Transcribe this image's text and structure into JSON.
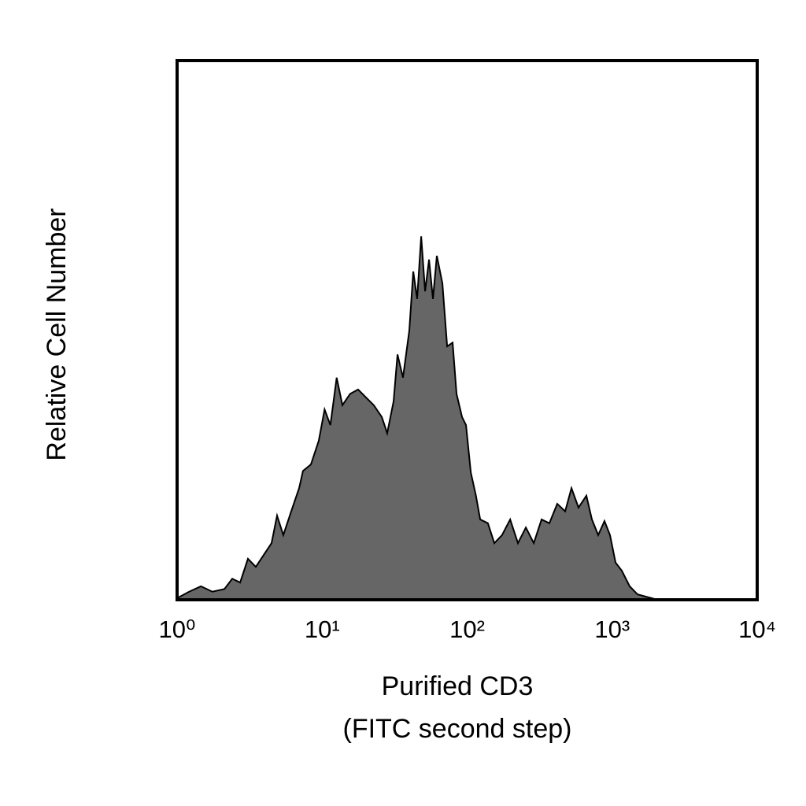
{
  "chart_data": {
    "type": "area",
    "xlabel": [
      "Purified CD3",
      "(FITC second step)"
    ],
    "ylabel": "Relative Cell Number",
    "xscale": "log",
    "xlim": [
      1,
      10000
    ],
    "xticks": [
      {
        "value": 1,
        "label": "10⁰"
      },
      {
        "value": 10,
        "label": "10¹"
      },
      {
        "value": 100,
        "label": "10²"
      },
      {
        "value": 1000,
        "label": "10³"
      },
      {
        "value": 10000,
        "label": "10⁴"
      }
    ],
    "ylim": [
      0,
      100
    ],
    "color": "#666666",
    "x": [
      1,
      1.21,
      1.46,
      1.75,
      2.12,
      2.4,
      2.72,
      3.08,
      3.49,
      3.95,
      4.48,
      4.89,
      5.4,
      6.12,
      6.94,
      7.38,
      8.37,
      9.48,
      10.4,
      11.4,
      12.6,
      13.8,
      15.6,
      17.7,
      20.1,
      22.7,
      25.8,
      28.1,
      31.1,
      33.1,
      36.1,
      39.9,
      42.5,
      45.2,
      48.2,
      51.3,
      54.6,
      58.1,
      61.8,
      67.5,
      72.8,
      79.4,
      84.5,
      92.2,
      98.2,
      106,
      115,
      123,
      139,
      154,
      174,
      198,
      224,
      254,
      288,
      326,
      369,
      418,
      474,
      524,
      586,
      664,
      725,
      801,
      885,
      966,
      1055,
      1165,
      1320,
      1496,
      1695,
      1874,
      2046
    ],
    "values": [
      0.3,
      1.5,
      2.5,
      1.5,
      2,
      3.9,
      3.2,
      7.6,
      6.1,
      8.3,
      10.5,
      15.6,
      12,
      16.4,
      20.7,
      23.9,
      25.1,
      29.5,
      35.3,
      32.4,
      41.2,
      36.1,
      38.2,
      39,
      37.5,
      36.1,
      33.9,
      30.9,
      36.8,
      45.5,
      41.2,
      49.9,
      60.9,
      55.8,
      67.4,
      57.2,
      63.1,
      55.8,
      63.8,
      58.7,
      47,
      47.7,
      38.2,
      33.9,
      32.4,
      23.6,
      19.3,
      14.9,
      14.2,
      10.5,
      12,
      14.9,
      10.5,
      13.4,
      10.5,
      14.9,
      14.2,
      17.8,
      16.4,
      20.7,
      17.1,
      19.3,
      14.9,
      12,
      14.6,
      12,
      6.9,
      5.4,
      2.5,
      1,
      0.6,
      0.3,
      0
    ]
  }
}
